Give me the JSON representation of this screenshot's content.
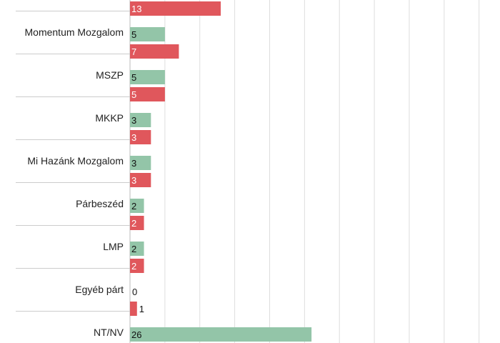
{
  "chart_data": {
    "type": "bar",
    "orientation": "horizontal",
    "grid": true,
    "categories": [
      "",
      "Momentum Mozgalom",
      "MSZP",
      "MKKP",
      "Mi Hazánk Mozgalom",
      "Párbeszéd",
      "LMP",
      "Egyéb párt",
      "NT/NV"
    ],
    "series": [
      {
        "values": [
          null,
          5,
          5,
          3,
          3,
          2,
          2,
          0,
          26
        ]
      },
      {
        "values": [
          13,
          7,
          5,
          3,
          3,
          2,
          2,
          1,
          null
        ]
      }
    ],
    "value_labels": [
      [
        "",
        "5",
        "5",
        "3",
        "3",
        "2",
        "2",
        "0",
        "26"
      ],
      [
        "13",
        "7",
        "5",
        "3",
        "3",
        "2",
        "2",
        "1",
        ""
      ]
    ],
    "xlim": [
      0,
      53
    ]
  },
  "colors": {
    "series": [
      "#93c5a8",
      "#e0575c"
    ],
    "grid": "#dddddd",
    "divider": "#cccccc"
  }
}
